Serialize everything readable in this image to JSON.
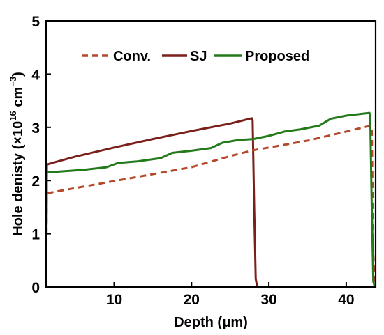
{
  "chart_data": {
    "type": "line",
    "xlabel": "Depth (μm)",
    "ylabel_main": "Hole denisty (×10",
    "ylabel_exp": "16",
    "ylabel_unit": " cm",
    "ylabel_unit_exp": "−3",
    "ylabel_close": ")",
    "xlim": [
      1.2,
      43.8
    ],
    "ylim": [
      0,
      5
    ],
    "xticks": [
      10,
      20,
      30,
      40
    ],
    "yticks": [
      0,
      1,
      2,
      3,
      4,
      5
    ],
    "legend_position": "top",
    "series": [
      {
        "name": "Conv.",
        "color": "#b5482a",
        "dash": "dashed",
        "points": [
          [
            1.2,
            0
          ],
          [
            1.3,
            1.76
          ],
          [
            2,
            1.78
          ],
          [
            5,
            1.86
          ],
          [
            10,
            1.99
          ],
          [
            15,
            2.12
          ],
          [
            20,
            2.25
          ],
          [
            25,
            2.46
          ],
          [
            28,
            2.57
          ],
          [
            30,
            2.62
          ],
          [
            35,
            2.75
          ],
          [
            40,
            2.92
          ],
          [
            43.1,
            3.03
          ],
          [
            43.3,
            3.02
          ],
          [
            43.5,
            0.6
          ],
          [
            43.7,
            0
          ]
        ]
      },
      {
        "name": "SJ",
        "color": "#7a1f1a",
        "dash": "solid",
        "points": [
          [
            1.2,
            0
          ],
          [
            1.3,
            2.3
          ],
          [
            2,
            2.33
          ],
          [
            5,
            2.45
          ],
          [
            10,
            2.62
          ],
          [
            15,
            2.78
          ],
          [
            20,
            2.93
          ],
          [
            25,
            3.07
          ],
          [
            27.8,
            3.17
          ],
          [
            27.9,
            3.13
          ],
          [
            28.1,
            1.5
          ],
          [
            28.3,
            0.15
          ],
          [
            28.5,
            0
          ]
        ]
      },
      {
        "name": "Proposed",
        "color": "#237a1a",
        "dash": "solid",
        "points": [
          [
            1.2,
            0
          ],
          [
            1.3,
            2.15
          ],
          [
            3,
            2.17
          ],
          [
            6,
            2.2
          ],
          [
            9,
            2.25
          ],
          [
            10.5,
            2.33
          ],
          [
            13,
            2.36
          ],
          [
            16,
            2.42
          ],
          [
            17.5,
            2.52
          ],
          [
            20,
            2.56
          ],
          [
            22.5,
            2.61
          ],
          [
            24,
            2.71
          ],
          [
            26,
            2.76
          ],
          [
            28,
            2.78
          ],
          [
            30,
            2.84
          ],
          [
            32,
            2.92
          ],
          [
            34,
            2.96
          ],
          [
            36.5,
            3.03
          ],
          [
            38,
            3.16
          ],
          [
            40,
            3.22
          ],
          [
            43,
            3.27
          ],
          [
            43.1,
            3.22
          ],
          [
            43.3,
            1.5
          ],
          [
            43.5,
            0.1
          ],
          [
            43.7,
            0
          ]
        ]
      }
    ]
  }
}
